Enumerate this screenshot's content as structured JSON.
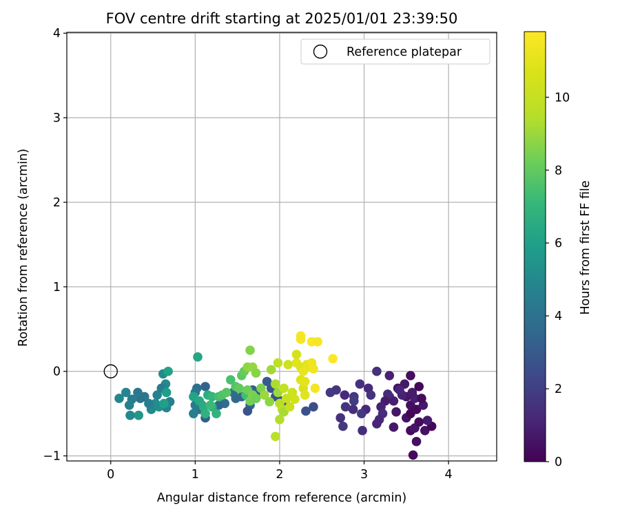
{
  "chart_data": {
    "type": "scatter",
    "title": "FOV centre drift starting at 2025/01/01 23:39:50",
    "xlabel": "Angular distance from reference (arcmin)",
    "ylabel": "Rotation from reference (arcmin)",
    "xlim": [
      -0.52,
      4.57
    ],
    "ylim": [
      -1.06,
      4.01
    ],
    "xticks": [
      "0",
      "1",
      "2",
      "3",
      "4"
    ],
    "xtick_values": [
      0,
      1,
      2,
      3,
      4
    ],
    "yticks": [
      "−1",
      "0",
      "1",
      "2",
      "3",
      "4"
    ],
    "ytick_values": [
      -1,
      0,
      1,
      2,
      3,
      4
    ],
    "grid": true,
    "legend": {
      "placement": "top-right",
      "entries": [
        "Reference platepar"
      ]
    },
    "reference": {
      "x": 0,
      "y": 0
    },
    "colorbar": {
      "label": "Hours from first FF file",
      "colormap": "viridis",
      "range": [
        0,
        11.8
      ],
      "ticks": [
        "0",
        "2",
        "4",
        "6",
        "8",
        "10"
      ],
      "tick_values": [
        0,
        2,
        4,
        6,
        8,
        10
      ]
    },
    "points": [
      [
        3.58,
        -0.99,
        0.2
      ],
      [
        3.62,
        -0.83,
        0.4
      ],
      [
        3.55,
        -0.7,
        0.3
      ],
      [
        3.6,
        -0.67,
        0.6
      ],
      [
        3.72,
        -0.7,
        0.5
      ],
      [
        3.8,
        -0.65,
        0.2
      ],
      [
        3.75,
        -0.58,
        0.8
      ],
      [
        3.65,
        -0.6,
        0.3
      ],
      [
        3.5,
        -0.55,
        0.5
      ],
      [
        3.55,
        -0.5,
        0.1
      ],
      [
        3.62,
        -0.45,
        0.2
      ],
      [
        3.7,
        -0.4,
        0.7
      ],
      [
        3.55,
        -0.4,
        0.4
      ],
      [
        3.6,
        -0.32,
        0.9
      ],
      [
        3.5,
        -0.3,
        0.6
      ],
      [
        3.68,
        -0.32,
        0.3
      ],
      [
        3.57,
        -0.25,
        0.8
      ],
      [
        3.45,
        -0.28,
        1.0
      ],
      [
        3.4,
        -0.2,
        0.5
      ],
      [
        3.48,
        -0.15,
        0.7
      ],
      [
        3.42,
        -0.22,
        1.1
      ],
      [
        3.55,
        -0.05,
        0.4
      ],
      [
        3.65,
        -0.18,
        0.2
      ],
      [
        3.3,
        -0.3,
        1.2
      ],
      [
        3.35,
        -0.35,
        0.9
      ],
      [
        3.28,
        -0.27,
        1.3
      ],
      [
        3.25,
        -0.35,
        0.8
      ],
      [
        3.2,
        -0.42,
        1.0
      ],
      [
        3.22,
        -0.5,
        1.4
      ],
      [
        3.38,
        -0.48,
        0.6
      ],
      [
        3.18,
        -0.57,
        1.2
      ],
      [
        3.15,
        -0.62,
        1.1
      ],
      [
        3.35,
        -0.66,
        0.7
      ],
      [
        3.3,
        -0.05,
        1.0
      ],
      [
        3.15,
        0.0,
        1.5
      ],
      [
        3.05,
        -0.2,
        1.3
      ],
      [
        3.08,
        -0.28,
        1.6
      ],
      [
        3.02,
        -0.45,
        1.2
      ],
      [
        2.97,
        -0.5,
        1.8
      ],
      [
        2.98,
        -0.7,
        1.4
      ],
      [
        2.95,
        -0.15,
        1.5
      ],
      [
        2.88,
        -0.3,
        1.7
      ],
      [
        2.88,
        -0.35,
        1.9
      ],
      [
        2.87,
        -0.45,
        1.4
      ],
      [
        2.78,
        -0.42,
        1.6
      ],
      [
        2.75,
        -0.65,
        1.8
      ],
      [
        2.72,
        -0.55,
        1.5
      ],
      [
        2.77,
        -0.28,
        1.3
      ],
      [
        2.67,
        -0.22,
        1.7
      ],
      [
        2.6,
        -0.25,
        1.8
      ],
      [
        2.4,
        -0.42,
        2.5
      ],
      [
        2.31,
        -0.47,
        2.7
      ],
      [
        2.08,
        -0.4,
        2.4
      ],
      [
        2.02,
        -0.35,
        2.8
      ],
      [
        1.95,
        -0.3,
        2.6
      ],
      [
        1.9,
        -0.2,
        2.9
      ],
      [
        1.85,
        -0.12,
        3.1
      ],
      [
        1.78,
        -0.25,
        3.0
      ],
      [
        1.72,
        -0.32,
        3.2
      ],
      [
        1.68,
        -0.22,
        3.3
      ],
      [
        1.65,
        -0.4,
        3.5
      ],
      [
        1.62,
        -0.47,
        2.8
      ],
      [
        1.55,
        -0.3,
        3.4
      ],
      [
        1.48,
        -0.32,
        3.6
      ],
      [
        1.45,
        -0.25,
        3.7
      ],
      [
        1.35,
        -0.38,
        3.8
      ],
      [
        1.28,
        -0.4,
        3.5
      ],
      [
        1.12,
        -0.18,
        3.4
      ],
      [
        1.08,
        -0.4,
        3.6
      ],
      [
        1.12,
        -0.55,
        3.2
      ],
      [
        1.02,
        -0.2,
        3.8
      ],
      [
        1.05,
        -0.45,
        4.0
      ],
      [
        1.0,
        -0.25,
        4.2
      ],
      [
        1.0,
        -0.4,
        4.4
      ],
      [
        0.98,
        -0.5,
        4.6
      ],
      [
        0.7,
        -0.36,
        4.6
      ],
      [
        0.66,
        -0.43,
        4.8
      ],
      [
        0.65,
        -0.15,
        5.0
      ],
      [
        0.62,
        -0.03,
        5.1
      ],
      [
        0.6,
        -0.2,
        4.4
      ],
      [
        0.57,
        -0.42,
        5.3
      ],
      [
        0.55,
        -0.28,
        4.7
      ],
      [
        0.53,
        -0.38,
        5.2
      ],
      [
        0.48,
        -0.45,
        5.0
      ],
      [
        0.45,
        -0.38,
        4.5
      ],
      [
        0.4,
        -0.3,
        4.3
      ],
      [
        0.35,
        -0.32,
        4.1
      ],
      [
        0.32,
        -0.25,
        4.2
      ],
      [
        0.33,
        -0.52,
        5.6
      ],
      [
        0.25,
        -0.33,
        4.4
      ],
      [
        0.22,
        -0.4,
        4.6
      ],
      [
        0.23,
        -0.52,
        5.0
      ],
      [
        0.18,
        -0.25,
        4.8
      ],
      [
        0.1,
        -0.32,
        4.9
      ],
      [
        0.66,
        -0.25,
        5.9
      ],
      [
        0.63,
        -0.38,
        6.0
      ],
      [
        0.68,
        0.0,
        6.1
      ],
      [
        1.03,
        0.17,
        6.3
      ],
      [
        0.98,
        -0.3,
        6.2
      ],
      [
        1.05,
        -0.35,
        6.4
      ],
      [
        1.1,
        -0.42,
        6.5
      ],
      [
        1.15,
        -0.28,
        6.6
      ],
      [
        1.12,
        -0.5,
        6.8
      ],
      [
        1.2,
        -0.42,
        6.6
      ],
      [
        1.2,
        -0.3,
        7.0
      ],
      [
        1.25,
        -0.5,
        6.9
      ],
      [
        1.18,
        -0.4,
        7.2
      ],
      [
        1.28,
        -0.3,
        7.4
      ],
      [
        1.32,
        -0.28,
        7.6
      ],
      [
        1.37,
        -0.25,
        7.8
      ],
      [
        1.42,
        -0.1,
        7.5
      ],
      [
        1.48,
        -0.18,
        7.7
      ],
      [
        1.52,
        -0.2,
        8.0
      ],
      [
        1.55,
        -0.05,
        7.9
      ],
      [
        1.58,
        0.0,
        8.1
      ],
      [
        1.6,
        -0.28,
        7.3
      ],
      [
        1.62,
        -0.22,
        8.2
      ],
      [
        1.65,
        -0.35,
        8.4
      ],
      [
        1.68,
        -0.28,
        8.5
      ],
      [
        1.72,
        -0.32,
        8.3
      ],
      [
        1.65,
        0.25,
        8.6
      ],
      [
        1.62,
        0.05,
        8.8
      ],
      [
        1.68,
        0.05,
        8.9
      ],
      [
        1.72,
        -0.02,
        8.7
      ],
      [
        1.78,
        -0.2,
        8.5
      ],
      [
        1.82,
        -0.28,
        9.0
      ],
      [
        1.88,
        -0.36,
        8.8
      ],
      [
        1.9,
        0.02,
        9.1
      ],
      [
        1.95,
        -0.15,
        9.3
      ],
      [
        1.98,
        -0.25,
        9.0
      ],
      [
        2.0,
        -0.38,
        9.5
      ],
      [
        2.03,
        -0.45,
        9.7
      ],
      [
        2.05,
        -0.48,
        9.2
      ],
      [
        2.0,
        -0.57,
        9.4
      ],
      [
        1.95,
        -0.77,
        9.6
      ],
      [
        1.98,
        0.1,
        9.8
      ],
      [
        2.05,
        -0.2,
        9.9
      ],
      [
        2.08,
        -0.32,
        10.0
      ],
      [
        2.12,
        -0.42,
        10.1
      ],
      [
        2.1,
        0.08,
        10.3
      ],
      [
        2.15,
        -0.25,
        10.2
      ],
      [
        2.18,
        -0.33,
        10.4
      ],
      [
        2.2,
        0.2,
        10.5
      ],
      [
        2.25,
        0.05,
        10.6
      ],
      [
        2.25,
        -0.1,
        10.8
      ],
      [
        2.28,
        -0.2,
        10.7
      ],
      [
        2.3,
        -0.28,
        10.9
      ],
      [
        2.32,
        0.08,
        11.0
      ],
      [
        2.28,
        0.0,
        11.2
      ],
      [
        2.35,
        0.05,
        11.1
      ],
      [
        2.38,
        0.1,
        11.3
      ],
      [
        2.4,
        0.03,
        11.4
      ],
      [
        2.42,
        -0.2,
        11.5
      ],
      [
        2.25,
        0.42,
        11.6
      ],
      [
        2.25,
        0.38,
        11.5
      ],
      [
        2.38,
        0.35,
        11.7
      ],
      [
        2.45,
        0.35,
        11.6
      ],
      [
        2.63,
        0.15,
        11.8
      ],
      [
        2.3,
        -0.12,
        11.0
      ],
      [
        2.2,
        0.1,
        10.9
      ]
    ]
  }
}
